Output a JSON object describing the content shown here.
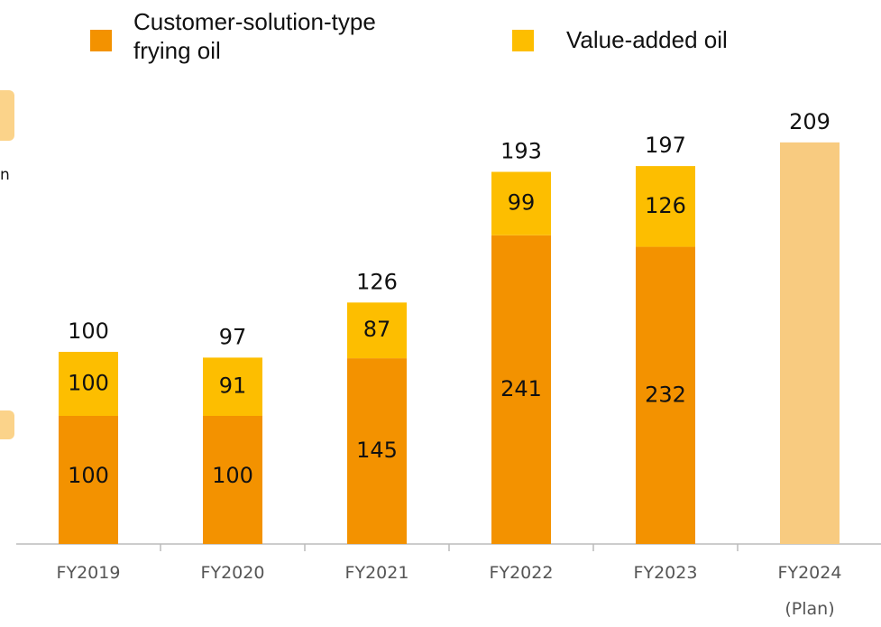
{
  "chart_data": {
    "type": "bar",
    "categories": [
      "FY2019",
      "FY2020",
      "FY2021",
      "FY2022",
      "FY2023",
      "FY2024\n(Plan)"
    ],
    "series": [
      {
        "name": "Customer-solution-type\nfrying oil",
        "color": "#f39200",
        "values": [
          100,
          100,
          145,
          241,
          232,
          null
        ]
      },
      {
        "name": "Value-added oil",
        "color": "#fdbe00",
        "values": [
          100,
          91,
          87,
          99,
          126,
          null
        ]
      }
    ],
    "totals": [
      100,
      97,
      126,
      193,
      197,
      209
    ],
    "plan_color": "#f8cb80",
    "side_text": "n"
  }
}
